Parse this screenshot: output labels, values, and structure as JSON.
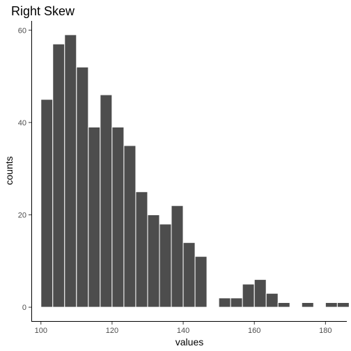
{
  "chart_data": {
    "type": "bar",
    "title": "Right Skew",
    "xlabel": "values",
    "ylabel": "counts",
    "xlim": [
      97.5,
      186
    ],
    "ylim": [
      -3,
      62
    ],
    "x_ticks": [
      100,
      120,
      140,
      160,
      180
    ],
    "y_ticks": [
      0,
      20,
      40,
      60
    ],
    "bin_width": 3.33,
    "bins": [
      {
        "start": 100.0,
        "count": 45
      },
      {
        "start": 103.33,
        "count": 57
      },
      {
        "start": 106.66,
        "count": 59
      },
      {
        "start": 110.0,
        "count": 52
      },
      {
        "start": 113.33,
        "count": 39
      },
      {
        "start": 116.66,
        "count": 46
      },
      {
        "start": 120.0,
        "count": 39
      },
      {
        "start": 123.33,
        "count": 35
      },
      {
        "start": 126.66,
        "count": 25
      },
      {
        "start": 130.0,
        "count": 20
      },
      {
        "start": 133.33,
        "count": 18
      },
      {
        "start": 136.66,
        "count": 22
      },
      {
        "start": 140.0,
        "count": 14
      },
      {
        "start": 143.33,
        "count": 11
      },
      {
        "start": 146.66,
        "count": 0
      },
      {
        "start": 150.0,
        "count": 2
      },
      {
        "start": 153.33,
        "count": 2
      },
      {
        "start": 156.66,
        "count": 5
      },
      {
        "start": 160.0,
        "count": 6
      },
      {
        "start": 163.33,
        "count": 3
      },
      {
        "start": 166.66,
        "count": 1
      },
      {
        "start": 170.0,
        "count": 0
      },
      {
        "start": 173.33,
        "count": 1
      },
      {
        "start": 176.66,
        "count": 0
      },
      {
        "start": 180.0,
        "count": 1
      },
      {
        "start": 183.33,
        "count": 1
      }
    ],
    "bar_color": "#4d4d4d",
    "bar_outline": "#ffffff",
    "grid": false
  }
}
